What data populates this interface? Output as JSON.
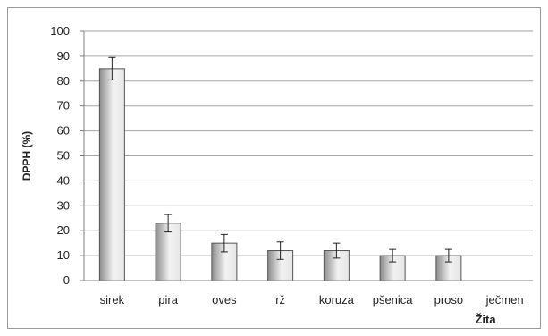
{
  "chart_data": {
    "type": "bar",
    "title": "",
    "xlabel": "Žita",
    "ylabel": "DPPH (%)",
    "ylim": [
      0,
      100
    ],
    "yticks": [
      0,
      10,
      20,
      30,
      40,
      50,
      60,
      70,
      80,
      90,
      100
    ],
    "categories": [
      "sirek",
      "pira",
      "oves",
      "rž",
      "koruza",
      "pšenica",
      "proso",
      "ječmen"
    ],
    "values": [
      85,
      23,
      15,
      12,
      12,
      10,
      10,
      0
    ],
    "errors": [
      4.5,
      3.5,
      3.5,
      3.5,
      3,
      2.5,
      2.5,
      0
    ],
    "grid": true,
    "legend": "none",
    "colors": {
      "bar_dark": "#8c8c8c",
      "bar_light": "#f2f2f2",
      "grid": "#a6a6a6",
      "axis": "#7f7f7f"
    }
  }
}
